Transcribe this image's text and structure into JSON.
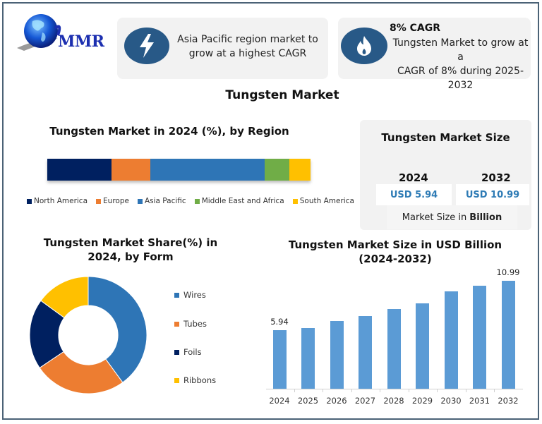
{
  "logo": {
    "text": "MMR",
    "icon": "globe-icon"
  },
  "cards": [
    {
      "icon": "lightning-icon",
      "text_line1": "Asia Pacific region market to",
      "text_line2": "grow at a highest CAGR"
    },
    {
      "icon": "flame-icon",
      "title": "8% CAGR",
      "text_line1": "Tungsten Market to grow at a",
      "text_line2": "CAGR of 8% during 2025-2032"
    }
  ],
  "page_title": "Tungsten Market",
  "market_size": {
    "title": "Tungsten Market Size",
    "year1": "2024",
    "value1": "USD 5.94",
    "year2": "2032",
    "value2": "USD 10.99",
    "footer_prefix": "Market Size in",
    "footer_bold": "Billion"
  },
  "colors": {
    "navy": "#002060",
    "orange": "#ed7d31",
    "blue": "#2e75b6",
    "green": "#70ad47",
    "yellow": "#ffc000",
    "bar_blue": "#5b9bd5",
    "frame": "#4b6276",
    "icon_circle": "#285987"
  },
  "chart_data": [
    {
      "type": "bar",
      "subtype": "stacked-horizontal-100",
      "title": "Tungsten Market in 2024 (%), by Region",
      "categories": [
        "North America",
        "Europe",
        "Asia Pacific",
        "Middle East and Africa",
        "South America"
      ],
      "values": [
        24.4,
        14.7,
        43.5,
        9.4,
        8.0
      ],
      "colors": [
        "#002060",
        "#ed7d31",
        "#2e75b6",
        "#70ad47",
        "#ffc000"
      ],
      "legend_position": "bottom",
      "xlabel": "",
      "ylabel": ""
    },
    {
      "type": "pie",
      "subtype": "donut",
      "title": "Tungsten Market Share(%) in 2024, by Form",
      "categories": [
        "Wires",
        "Tubes",
        "Foils",
        "Ribbons"
      ],
      "values": [
        40,
        25,
        20,
        15
      ],
      "colors": [
        "#2e75b6",
        "#ed7d31",
        "#002060",
        "#ffc000"
      ],
      "legend_position": "right"
    },
    {
      "type": "bar",
      "title": "Tungsten Market Size in USD Billion",
      "subtitle": "(2024-2032)",
      "categories": [
        "2024",
        "2025",
        "2026",
        "2027",
        "2028",
        "2029",
        "2030",
        "2031",
        "2032"
      ],
      "values": [
        5.94,
        6.2,
        6.9,
        7.4,
        8.1,
        8.7,
        9.9,
        10.5,
        10.99
      ],
      "data_labels": {
        "2024": "5.94",
        "2032": "10.99"
      },
      "xlabel": "",
      "ylabel": "",
      "ylim": [
        0,
        11.5
      ],
      "grid": false
    }
  ]
}
